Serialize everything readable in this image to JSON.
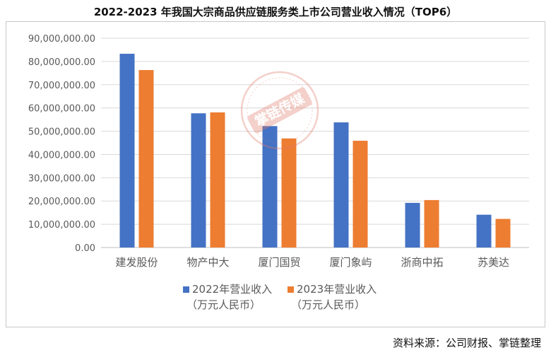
{
  "title": "2022-2023 年我国大宗商品供应链服务类上市公司营业收入情况（TOP6）",
  "source": "资料来源：公司财报、掌链整理",
  "watermark": "掌链传媒",
  "colors": {
    "series_2022": "#4472C4",
    "series_2023": "#ED7D31",
    "grid": "#d9d9d9",
    "axis_text": "#595959"
  },
  "chart_data": {
    "type": "bar",
    "categories": [
      "建发股份",
      "物产中大",
      "厦门国贸",
      "厦门象屿",
      "浙商中拓",
      "苏美达"
    ],
    "series": [
      {
        "name": "2022年营业收入\n（万元人民币）",
        "values": [
          83300000,
          57700000,
          52200000,
          53800000,
          19200000,
          14100000
        ]
      },
      {
        "name": "2023年营业收入\n（万元人民币）",
        "values": [
          76300000,
          58100000,
          46900000,
          45900000,
          20400000,
          12300000
        ]
      }
    ],
    "ylim": [
      0,
      90000000
    ],
    "yticks": [
      "0.00",
      "10,000,000.00",
      "20,000,000.00",
      "30,000,000.00",
      "40,000,000.00",
      "50,000,000.00",
      "60,000,000.00",
      "70,000,000.00",
      "80,000,000.00",
      "90,000,000.00"
    ],
    "grid": true,
    "legend": "bottom"
  }
}
